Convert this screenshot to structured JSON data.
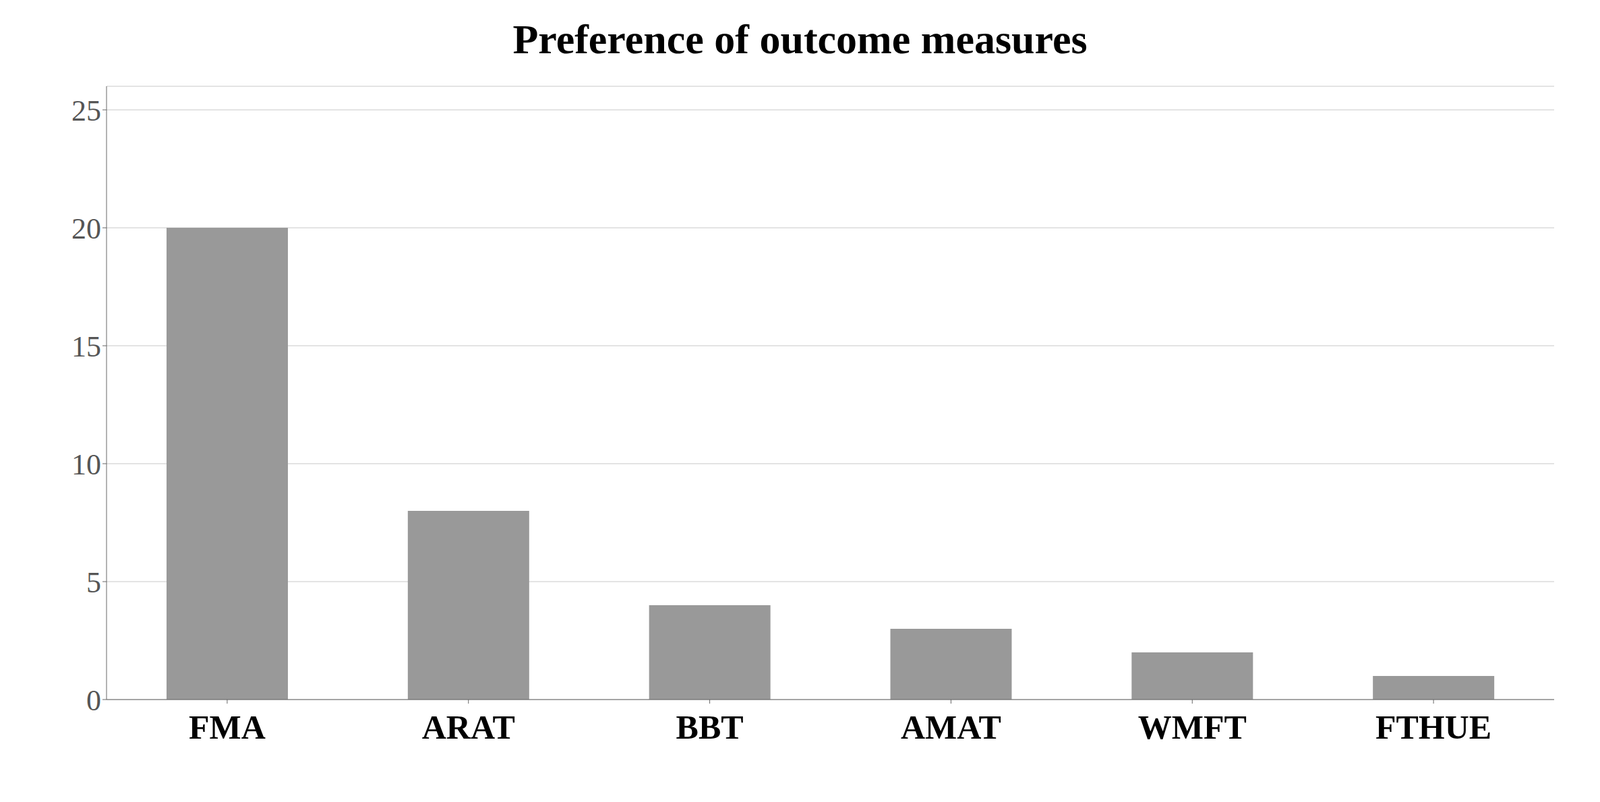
{
  "chart_data": {
    "type": "bar",
    "title": "Preference of outcome measures",
    "categories": [
      "FMA",
      "ARAT",
      "BBT",
      "AMAT",
      "WMFT",
      "FTHUE"
    ],
    "values": [
      20,
      8,
      4,
      3,
      2,
      1
    ],
    "color": "#999999",
    "ylim": [
      0,
      26
    ],
    "yticks": [
      0,
      5,
      10,
      15,
      20,
      25
    ],
    "grid": true
  }
}
